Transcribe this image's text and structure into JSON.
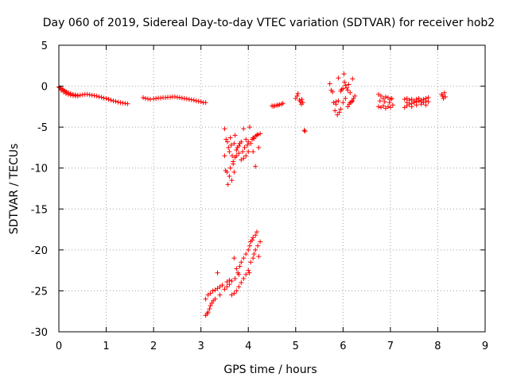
{
  "chart_data": {
    "type": "scatter",
    "title": "Day 060 of 2019, Sidereal Day-to-day VTEC variation (SDTVAR) for receiver hob2",
    "xlabel": "GPS time / hours",
    "ylabel": "SDTVAR / TECUs",
    "xlim": [
      0,
      9
    ],
    "ylim": [
      -30,
      5
    ],
    "x_ticks": [
      "0",
      "1",
      "2",
      "3",
      "4",
      "5",
      "6",
      "7",
      "8",
      "9"
    ],
    "y_ticks": [
      "5",
      "0",
      "-5",
      "-10",
      "-15",
      "-20",
      "-25",
      "-30"
    ],
    "grid": true,
    "marker": "+",
    "color": "#ff0000",
    "series": [
      {
        "name": "SDTVAR",
        "points": [
          [
            0.0,
            -0.1
          ],
          [
            0.02,
            -0.2
          ],
          [
            0.05,
            -0.3
          ],
          [
            0.08,
            -0.4
          ],
          [
            0.1,
            -0.5
          ],
          [
            0.13,
            -0.6
          ],
          [
            0.16,
            -0.7
          ],
          [
            0.2,
            -0.8
          ],
          [
            0.25,
            -0.9
          ],
          [
            0.3,
            -1.0
          ],
          [
            0.35,
            -1.05
          ],
          [
            0.4,
            -1.1
          ],
          [
            0.45,
            -1.1
          ],
          [
            0.5,
            -1.05
          ],
          [
            0.55,
            -1.0
          ],
          [
            0.6,
            -1.0
          ],
          [
            0.65,
            -1.05
          ],
          [
            0.7,
            -1.1
          ],
          [
            0.75,
            -1.15
          ],
          [
            0.8,
            -1.2
          ],
          [
            0.85,
            -1.3
          ],
          [
            0.9,
            -1.35
          ],
          [
            0.95,
            -1.45
          ],
          [
            1.0,
            -1.5
          ],
          [
            1.05,
            -1.6
          ],
          [
            1.1,
            -1.7
          ],
          [
            1.15,
            -1.8
          ],
          [
            1.2,
            -1.85
          ],
          [
            1.25,
            -1.95
          ],
          [
            1.3,
            -2.0
          ],
          [
            1.35,
            -2.05
          ],
          [
            1.4,
            -2.1
          ],
          [
            1.45,
            -2.15
          ],
          [
            0.05,
            -0.5
          ],
          [
            0.1,
            -0.7
          ],
          [
            0.15,
            -0.9
          ],
          [
            0.2,
            -1.0
          ],
          [
            0.25,
            -1.1
          ],
          [
            0.3,
            -1.15
          ],
          [
            0.35,
            -1.2
          ],
          [
            0.4,
            -1.2
          ],
          [
            1.78,
            -1.4
          ],
          [
            1.83,
            -1.5
          ],
          [
            1.88,
            -1.55
          ],
          [
            1.93,
            -1.6
          ],
          [
            2.0,
            -1.55
          ],
          [
            2.05,
            -1.5
          ],
          [
            2.1,
            -1.45
          ],
          [
            2.15,
            -1.45
          ],
          [
            2.2,
            -1.4
          ],
          [
            2.25,
            -1.4
          ],
          [
            2.3,
            -1.35
          ],
          [
            2.35,
            -1.35
          ],
          [
            2.4,
            -1.3
          ],
          [
            2.45,
            -1.3
          ],
          [
            2.5,
            -1.35
          ],
          [
            2.55,
            -1.4
          ],
          [
            2.6,
            -1.45
          ],
          [
            2.65,
            -1.5
          ],
          [
            2.7,
            -1.55
          ],
          [
            2.75,
            -1.6
          ],
          [
            2.8,
            -1.65
          ],
          [
            2.85,
            -1.7
          ],
          [
            2.9,
            -1.8
          ],
          [
            2.95,
            -1.85
          ],
          [
            3.0,
            -1.9
          ],
          [
            3.05,
            -2.0
          ],
          [
            3.1,
            -2.0
          ],
          [
            3.5,
            -5.2
          ],
          [
            3.53,
            -6.5
          ],
          [
            3.56,
            -6.8
          ],
          [
            3.58,
            -7.5
          ],
          [
            3.6,
            -8.0
          ],
          [
            3.62,
            -6.3
          ],
          [
            3.64,
            -7.2
          ],
          [
            3.66,
            -8.5
          ],
          [
            3.68,
            -9.2
          ],
          [
            3.7,
            -7.0
          ],
          [
            3.72,
            -6.0
          ],
          [
            3.75,
            -7.8
          ],
          [
            3.77,
            -7.5
          ],
          [
            3.8,
            -7.3
          ],
          [
            3.82,
            -7.0
          ],
          [
            3.85,
            -6.8
          ],
          [
            3.88,
            -8.0
          ],
          [
            3.9,
            -5.2
          ],
          [
            3.92,
            -7.5
          ],
          [
            3.95,
            -6.5
          ],
          [
            3.98,
            -7.2
          ],
          [
            4.0,
            -6.8
          ],
          [
            4.03,
            -5.0
          ],
          [
            4.05,
            -7.0
          ],
          [
            4.08,
            -6.5
          ],
          [
            4.1,
            -6.3
          ],
          [
            4.12,
            -6.4
          ],
          [
            4.15,
            -6.1
          ],
          [
            4.18,
            -6.0
          ],
          [
            4.2,
            -5.9
          ],
          [
            4.22,
            -7.5
          ],
          [
            4.25,
            -5.8
          ],
          [
            3.5,
            -8.5
          ],
          [
            3.52,
            -10.3
          ],
          [
            3.55,
            -10.5
          ],
          [
            3.57,
            -12.0
          ],
          [
            3.6,
            -11.0
          ],
          [
            3.62,
            -10.0
          ],
          [
            3.65,
            -11.5
          ],
          [
            3.68,
            -9.5
          ],
          [
            3.7,
            -10.5
          ],
          [
            3.72,
            -8.7
          ],
          [
            3.75,
            -8.5
          ],
          [
            3.8,
            -8.2
          ],
          [
            3.85,
            -9.0
          ],
          [
            3.9,
            -8.8
          ],
          [
            3.95,
            -8.5
          ],
          [
            4.0,
            -8.0
          ],
          [
            4.1,
            -8.0
          ],
          [
            4.15,
            -9.8
          ],
          [
            3.1,
            -28.0
          ],
          [
            3.13,
            -27.8
          ],
          [
            3.15,
            -27.6
          ],
          [
            3.18,
            -27.2
          ],
          [
            3.2,
            -26.8
          ],
          [
            3.23,
            -26.5
          ],
          [
            3.26,
            -26.2
          ],
          [
            3.3,
            -26.0
          ],
          [
            3.35,
            -22.8
          ],
          [
            3.4,
            -25.5
          ],
          [
            3.5,
            -24.8
          ],
          [
            3.55,
            -24.5
          ],
          [
            3.6,
            -24.2
          ],
          [
            3.65,
            -23.8
          ],
          [
            3.7,
            -21.0
          ],
          [
            3.72,
            -23.5
          ],
          [
            3.78,
            -22.8
          ],
          [
            3.82,
            -22.0
          ],
          [
            3.85,
            -21.5
          ],
          [
            3.9,
            -21.0
          ],
          [
            3.95,
            -20.5
          ],
          [
            4.0,
            -20.0
          ],
          [
            4.03,
            -19.5
          ],
          [
            4.05,
            -19.0
          ],
          [
            4.08,
            -18.8
          ],
          [
            4.1,
            -18.5
          ],
          [
            4.15,
            -18.2
          ],
          [
            4.18,
            -17.8
          ],
          [
            3.1,
            -26.0
          ],
          [
            3.15,
            -25.5
          ],
          [
            3.2,
            -25.3
          ],
          [
            3.25,
            -25.0
          ],
          [
            3.3,
            -24.9
          ],
          [
            3.35,
            -24.7
          ],
          [
            3.4,
            -24.5
          ],
          [
            3.45,
            -24.3
          ],
          [
            3.55,
            -23.9
          ],
          [
            3.6,
            -23.7
          ],
          [
            3.65,
            -25.5
          ],
          [
            3.7,
            -25.3
          ],
          [
            3.75,
            -25.0
          ],
          [
            3.8,
            -24.5
          ],
          [
            3.85,
            -24.0
          ],
          [
            3.9,
            -23.5
          ],
          [
            3.95,
            -23.0
          ],
          [
            4.0,
            -22.5
          ],
          [
            4.02,
            -22.8
          ],
          [
            4.05,
            -21.5
          ],
          [
            4.1,
            -21.0
          ],
          [
            4.12,
            -20.5
          ],
          [
            4.15,
            -20.0
          ],
          [
            4.2,
            -19.5
          ],
          [
            4.25,
            -19.0
          ],
          [
            4.22,
            -20.8
          ],
          [
            3.75,
            -22.3
          ],
          [
            3.8,
            -23.0
          ],
          [
            4.5,
            -2.4
          ],
          [
            4.53,
            -2.45
          ],
          [
            4.56,
            -2.4
          ],
          [
            4.6,
            -2.35
          ],
          [
            4.63,
            -2.3
          ],
          [
            4.66,
            -2.25
          ],
          [
            4.7,
            -2.2
          ],
          [
            4.73,
            -2.1
          ],
          [
            5.0,
            -1.5
          ],
          [
            5.03,
            -1.2
          ],
          [
            5.05,
            -0.9
          ],
          [
            5.08,
            -1.7
          ],
          [
            5.1,
            -1.9
          ],
          [
            5.12,
            -2.2
          ],
          [
            5.13,
            -1.6
          ],
          [
            5.15,
            -2.0
          ],
          [
            5.18,
            -5.4
          ],
          [
            5.2,
            -5.5
          ],
          [
            5.72,
            0.3
          ],
          [
            5.75,
            -0.5
          ],
          [
            5.78,
            -0.7
          ],
          [
            5.8,
            -2.0
          ],
          [
            5.83,
            -3.0
          ],
          [
            5.85,
            -2.2
          ],
          [
            5.88,
            -3.5
          ],
          [
            5.9,
            -1.8
          ],
          [
            5.92,
            -3.2
          ],
          [
            5.95,
            -0.6
          ],
          [
            5.97,
            -0.4
          ],
          [
            6.0,
            -0.3
          ],
          [
            6.02,
            1.5
          ],
          [
            6.03,
            0.5
          ],
          [
            6.05,
            -1.5
          ],
          [
            6.08,
            -0.2
          ],
          [
            6.1,
            -2.5
          ],
          [
            6.12,
            0.2
          ],
          [
            6.13,
            -2.2
          ],
          [
            6.15,
            -0.8
          ],
          [
            6.18,
            -1.9
          ],
          [
            6.2,
            0.9
          ],
          [
            6.22,
            -1.5
          ],
          [
            6.25,
            -1.2
          ],
          [
            5.85,
            -1.9
          ],
          [
            5.9,
            1.0
          ],
          [
            5.95,
            -2.8
          ],
          [
            6.0,
            -2.0
          ],
          [
            6.05,
            0.1
          ],
          [
            6.1,
            -0.5
          ],
          [
            6.15,
            -2.0
          ],
          [
            6.2,
            -1.8
          ],
          [
            6.75,
            -1.0
          ],
          [
            6.8,
            -1.2
          ],
          [
            6.85,
            -1.5
          ],
          [
            6.9,
            -1.3
          ],
          [
            6.95,
            -1.4
          ],
          [
            7.0,
            -1.6
          ],
          [
            7.03,
            -1.5
          ],
          [
            6.75,
            -2.5
          ],
          [
            6.8,
            -2.6
          ],
          [
            6.85,
            -2.4
          ],
          [
            6.9,
            -2.7
          ],
          [
            6.95,
            -2.5
          ],
          [
            7.0,
            -2.6
          ],
          [
            7.05,
            -2.3
          ],
          [
            6.78,
            -1.8
          ],
          [
            6.88,
            -1.9
          ],
          [
            6.98,
            -2.0
          ],
          [
            7.3,
            -2.6
          ],
          [
            7.35,
            -2.4
          ],
          [
            7.4,
            -2.2
          ],
          [
            7.45,
            -2.1
          ],
          [
            7.5,
            -2.0
          ],
          [
            7.55,
            -1.9
          ],
          [
            7.6,
            -1.8
          ],
          [
            7.65,
            -1.7
          ],
          [
            7.7,
            -1.6
          ],
          [
            7.75,
            -1.5
          ],
          [
            7.8,
            -1.4
          ],
          [
            7.3,
            -1.6
          ],
          [
            7.35,
            -1.5
          ],
          [
            7.4,
            -1.7
          ],
          [
            7.45,
            -1.6
          ],
          [
            7.5,
            -1.8
          ],
          [
            7.55,
            -1.6
          ],
          [
            7.6,
            -1.5
          ],
          [
            7.65,
            -2.2
          ],
          [
            7.7,
            -2.0
          ],
          [
            7.75,
            -2.3
          ],
          [
            7.8,
            -1.9
          ],
          [
            7.35,
            -2.0
          ],
          [
            7.45,
            -2.5
          ],
          [
            7.55,
            -2.3
          ],
          [
            7.65,
            -1.9
          ],
          [
            7.75,
            -1.8
          ],
          [
            8.08,
            -1.0
          ],
          [
            8.1,
            -1.2
          ],
          [
            8.12,
            -1.5
          ],
          [
            8.14,
            -0.8
          ],
          [
            8.16,
            -1.3
          ]
        ]
      }
    ]
  }
}
